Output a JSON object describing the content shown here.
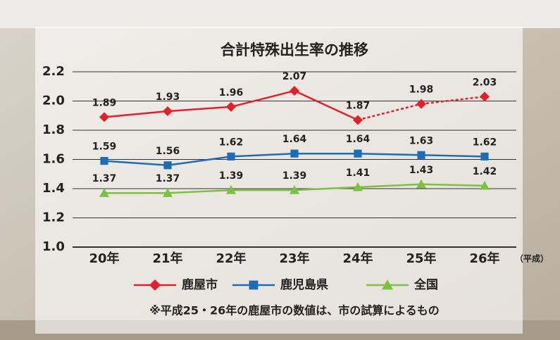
{
  "chart_data": {
    "type": "line",
    "title": "合計特殊出生率の推移",
    "categories": [
      "20年",
      "21年",
      "22年",
      "23年",
      "24年",
      "25年",
      "26年"
    ],
    "x_unit": "（平成）",
    "ylim": [
      1.0,
      2.2
    ],
    "yticks": [
      {
        "value": 1.0,
        "label": "1.0"
      },
      1.2,
      1.4,
      1.6,
      1.8,
      {
        "value": 2.0,
        "label": "2.0"
      },
      2.2
    ],
    "grid": true,
    "legend": "bottom",
    "series": [
      {
        "name": "鹿屋市",
        "color": "#e2202b",
        "marker": "diamond",
        "dash_after": 4,
        "values": [
          1.89,
          1.93,
          1.96,
          2.07,
          1.87,
          1.98,
          2.03
        ]
      },
      {
        "name": "鹿児島県",
        "color": "#1d6db6",
        "marker": "square",
        "values": [
          1.59,
          1.56,
          1.62,
          1.64,
          1.64,
          1.63,
          1.62
        ]
      },
      {
        "name": "全国",
        "color": "#7cc142",
        "marker": "triangle",
        "values": [
          1.37,
          1.37,
          1.39,
          1.39,
          1.41,
          1.43,
          1.42
        ]
      }
    ],
    "note": "※平成25・26年の鹿屋市の数値は、市の試算によるもの"
  }
}
